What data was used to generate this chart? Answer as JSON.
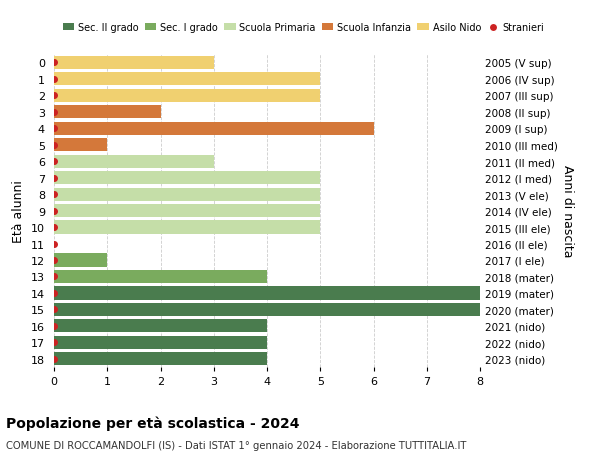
{
  "ages": [
    18,
    17,
    16,
    15,
    14,
    13,
    12,
    11,
    10,
    9,
    8,
    7,
    6,
    5,
    4,
    3,
    2,
    1,
    0
  ],
  "right_labels": [
    "2005 (V sup)",
    "2006 (IV sup)",
    "2007 (III sup)",
    "2008 (II sup)",
    "2009 (I sup)",
    "2010 (III med)",
    "2011 (II med)",
    "2012 (I med)",
    "2013 (V ele)",
    "2014 (IV ele)",
    "2015 (III ele)",
    "2016 (II ele)",
    "2017 (I ele)",
    "2018 (mater)",
    "2019 (mater)",
    "2020 (mater)",
    "2021 (nido)",
    "2022 (nido)",
    "2023 (nido)"
  ],
  "bar_values": [
    4,
    4,
    4,
    8,
    8,
    4,
    1,
    0,
    5,
    5,
    5,
    5,
    3,
    1,
    6,
    2,
    5,
    5,
    3
  ],
  "bar_colors": [
    "#4a7c4e",
    "#4a7c4e",
    "#4a7c4e",
    "#4a7c4e",
    "#4a7c4e",
    "#7aab5e",
    "#7aab5e",
    "#7aab5e",
    "#c5dea8",
    "#c5dea8",
    "#c5dea8",
    "#c5dea8",
    "#c5dea8",
    "#d4783a",
    "#d4783a",
    "#d4783a",
    "#f0d070",
    "#f0d070",
    "#f0d070"
  ],
  "dot_color": "#cc2222",
  "legend_labels": [
    "Sec. II grado",
    "Sec. I grado",
    "Scuola Primaria",
    "Scuola Infanzia",
    "Asilo Nido",
    "Stranieri"
  ],
  "legend_colors": [
    "#4a7c4e",
    "#7aab5e",
    "#c5dea8",
    "#d4783a",
    "#f0d070",
    "#cc2222"
  ],
  "ylabel_left": "Età alunni",
  "ylabel_right": "Anni di nascita",
  "xlim": [
    0,
    8
  ],
  "xticks": [
    0,
    1,
    2,
    3,
    4,
    5,
    6,
    7,
    8
  ],
  "title": "Popolazione per età scolastica - 2024",
  "subtitle": "COMUNE DI ROCCAMANDOLFI (IS) - Dati ISTAT 1° gennaio 2024 - Elaborazione TUTTITALIA.IT",
  "bg_color": "#ffffff",
  "plot_bg_color": "#ffffff",
  "grid_color": "#cccccc",
  "bar_height": 0.8
}
